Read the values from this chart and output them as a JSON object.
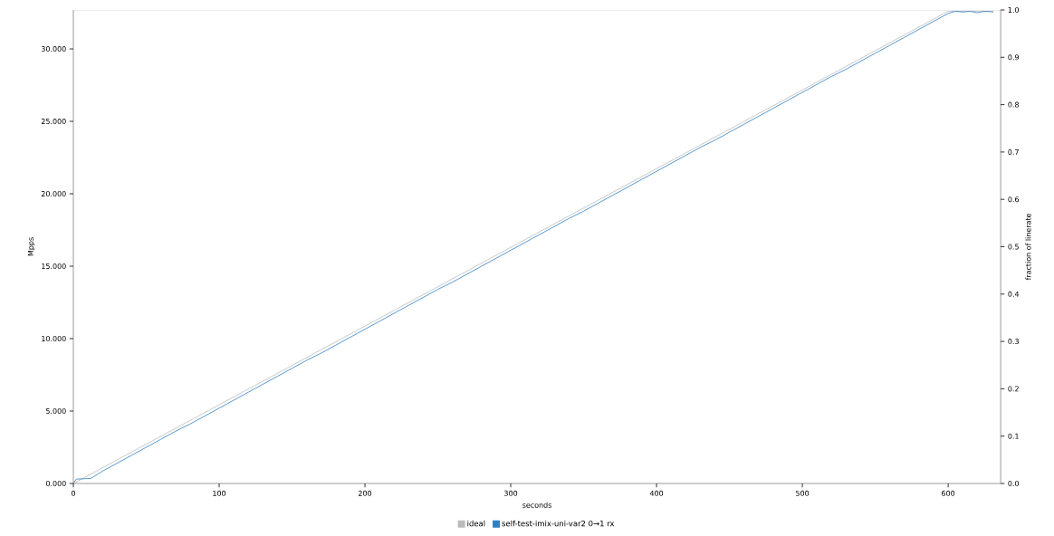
{
  "chart_data": {
    "type": "line",
    "xlabel": "seconds",
    "ylabel": "Mpps",
    "y2label": "fraction of linerate",
    "legend": "bottom",
    "xlim": [
      0,
      636
    ],
    "ylim": [
      0,
      32.69
    ],
    "y2lim": [
      0,
      1
    ],
    "xticks": [
      0,
      100,
      200,
      300,
      400,
      500,
      600
    ],
    "yticks": [
      {
        "value": 0,
        "label": "0.000"
      },
      {
        "value": 5,
        "label": "5.000"
      },
      {
        "value": 10,
        "label": "10.000"
      },
      {
        "value": 15,
        "label": "15.000"
      },
      {
        "value": 20,
        "label": "20.000"
      },
      {
        "value": 25,
        "label": "25.000"
      },
      {
        "value": 30,
        "label": "30.000"
      }
    ],
    "y2ticks": [
      {
        "value": 0,
        "label": "0.0"
      },
      {
        "value": 0.1,
        "label": "0.1"
      },
      {
        "value": 0.2,
        "label": "0.2"
      },
      {
        "value": 0.3,
        "label": "0.3"
      },
      {
        "value": 0.4,
        "label": "0.4"
      },
      {
        "value": 0.5,
        "label": "0.5"
      },
      {
        "value": 0.6,
        "label": "0.6"
      },
      {
        "value": 0.7,
        "label": "0.7"
      },
      {
        "value": 0.8,
        "label": "0.8"
      },
      {
        "value": 0.9,
        "label": "0.9"
      },
      {
        "value": 1,
        "label": "1.0"
      }
    ],
    "series": [
      {
        "name": "ideal",
        "color": "#bbbbbb",
        "x": [
          0,
          600,
          631
        ],
        "values": [
          0,
          32.6,
          32.6
        ]
      },
      {
        "name": "self-test-imix-uni-var2 0→1 rx",
        "color": "#2f7fc1",
        "x": [
          0,
          2,
          12,
          20,
          30,
          40,
          50,
          60,
          70,
          80,
          90,
          100,
          110,
          120,
          130,
          140,
          150,
          160,
          170,
          180,
          190,
          200,
          210,
          220,
          230,
          240,
          250,
          260,
          270,
          280,
          290,
          300,
          310,
          320,
          330,
          340,
          350,
          360,
          370,
          380,
          390,
          400,
          410,
          420,
          430,
          440,
          450,
          460,
          470,
          480,
          490,
          500,
          510,
          520,
          530,
          540,
          550,
          560,
          570,
          580,
          590,
          600,
          605,
          610,
          615,
          620,
          625,
          631
        ],
        "values": [
          0,
          0.3,
          0.35,
          0.85,
          1.4,
          1.95,
          2.5,
          3.05,
          3.6,
          4.1,
          4.65,
          5.2,
          5.75,
          6.3,
          6.85,
          7.4,
          7.95,
          8.5,
          9.0,
          9.55,
          10.1,
          10.65,
          11.2,
          11.75,
          12.3,
          12.85,
          13.4,
          13.9,
          14.45,
          15.0,
          15.55,
          16.1,
          16.65,
          17.2,
          17.75,
          18.3,
          18.8,
          19.35,
          19.9,
          20.45,
          21.0,
          21.55,
          22.1,
          22.65,
          23.2,
          23.7,
          24.25,
          24.8,
          25.35,
          25.9,
          26.45,
          27.0,
          27.55,
          28.1,
          28.6,
          29.15,
          29.7,
          30.25,
          30.8,
          31.35,
          31.9,
          32.45,
          32.6,
          32.55,
          32.6,
          32.5,
          32.6,
          32.55
        ]
      }
    ]
  }
}
